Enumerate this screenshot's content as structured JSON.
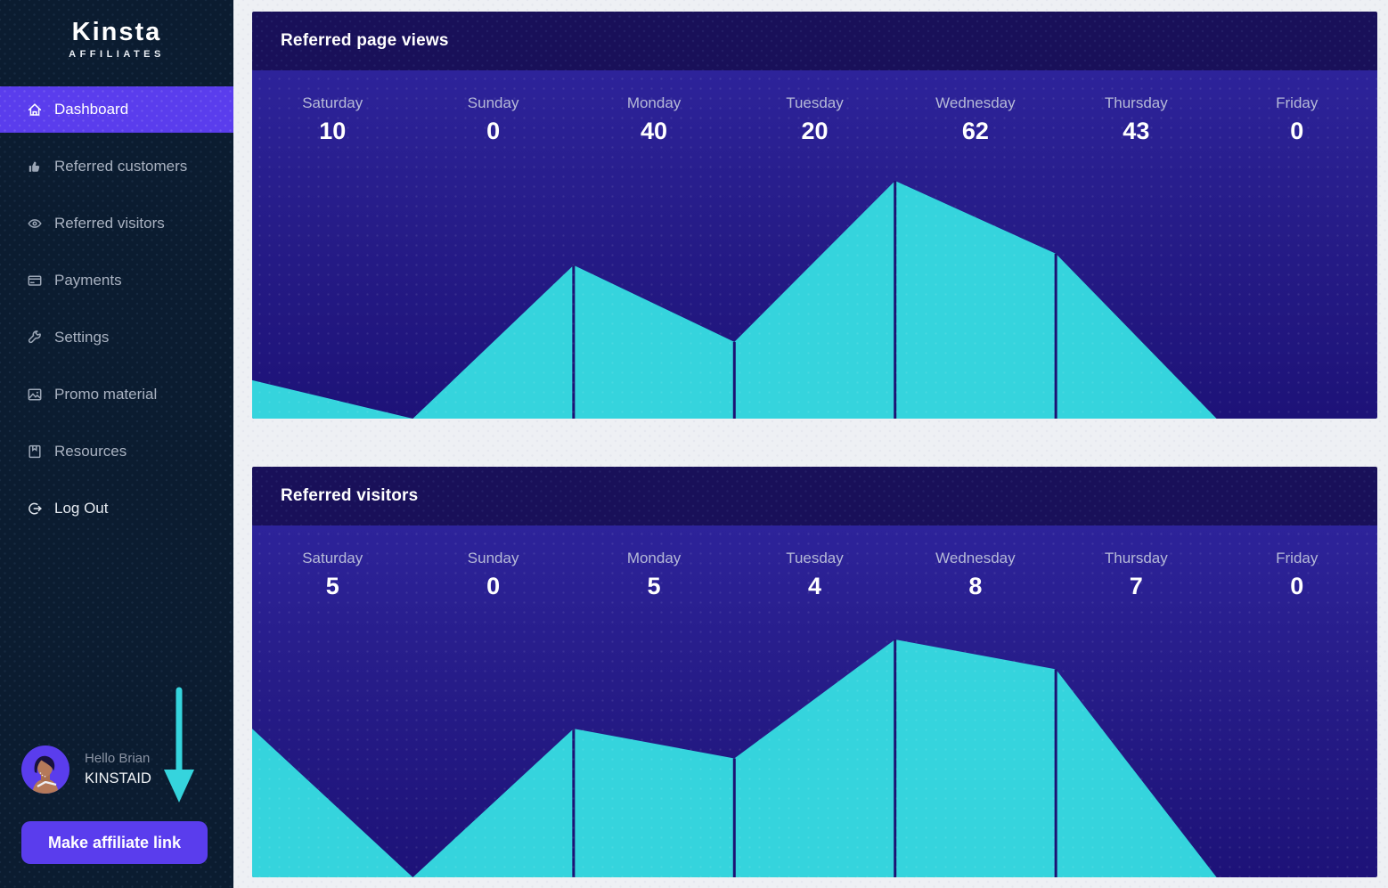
{
  "app": {
    "brand": "Kinsta",
    "brand_tagline": "AFFILIATES"
  },
  "sidebar": {
    "items": [
      {
        "label": "Dashboard",
        "icon": "home-icon",
        "active": true
      },
      {
        "label": "Referred customers",
        "icon": "thumbs-up-icon",
        "active": false
      },
      {
        "label": "Referred visitors",
        "icon": "eye-icon",
        "active": false
      },
      {
        "label": "Payments",
        "icon": "credit-card-icon",
        "active": false
      },
      {
        "label": "Settings",
        "icon": "wrench-icon",
        "active": false
      },
      {
        "label": "Promo material",
        "icon": "image-icon",
        "active": false
      },
      {
        "label": "Resources",
        "icon": "book-icon",
        "active": false
      },
      {
        "label": "Log Out",
        "icon": "logout-icon",
        "active": false
      }
    ],
    "user": {
      "greeting": "Hello Brian",
      "username": "KINSTAID",
      "avatar": "avatar-illustration"
    },
    "annotation": {
      "icon": "down-arrow-icon"
    },
    "cta": {
      "label": "Make affiliate link"
    }
  },
  "colors": {
    "accent_purple": "#5a3ded",
    "chart_cyan": "#35d4dd",
    "chart_divider_line": "#1b1273",
    "chart_header_bg": "#191059",
    "chart_body_bg": "#261c88",
    "sidebar_bg": "#0b1c30",
    "page_bg": "#eef0f4",
    "arrow_cyan": "#35d4dd"
  },
  "chart_data": [
    {
      "type": "area",
      "title": "Referred page views",
      "categories": [
        "Saturday",
        "Sunday",
        "Monday",
        "Tuesday",
        "Wednesday",
        "Thursday",
        "Friday"
      ],
      "values": [
        10,
        0,
        40,
        20,
        62,
        43,
        0
      ],
      "xlabel": "",
      "ylabel": "",
      "ylim": [
        0,
        62
      ],
      "grid": false,
      "legend": false,
      "value_labels_shown": true
    },
    {
      "type": "area",
      "title": "Referred visitors",
      "categories": [
        "Saturday",
        "Sunday",
        "Monday",
        "Tuesday",
        "Wednesday",
        "Thursday",
        "Friday"
      ],
      "values": [
        5,
        0,
        5,
        4,
        8,
        7,
        0
      ],
      "xlabel": "",
      "ylabel": "",
      "ylim": [
        0,
        8
      ],
      "grid": false,
      "legend": false,
      "value_labels_shown": true
    }
  ]
}
